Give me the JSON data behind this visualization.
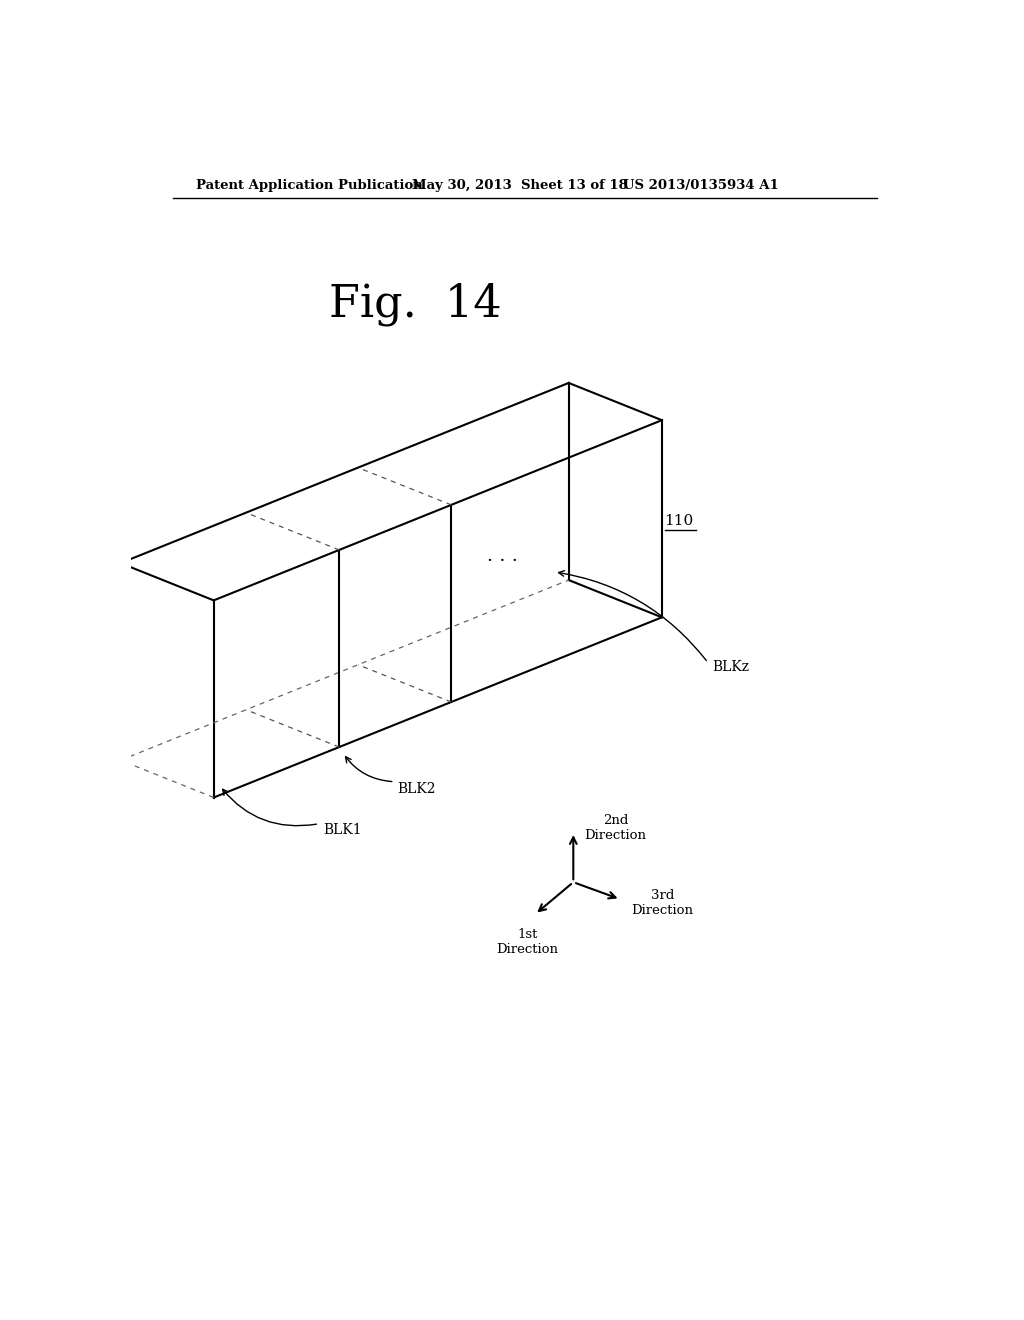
{
  "title": "Fig.  14",
  "header_left": "Patent Application Publication",
  "header_mid": "May 30, 2013  Sheet 13 of 18",
  "header_right": "US 2013/0135934 A1",
  "label_110": "110",
  "label_blk1": "BLK1",
  "label_blk2": "BLK2",
  "label_blkz": "BLKz",
  "label_1st": "1st\nDirection",
  "label_2nd": "2nd\nDirection",
  "label_3rd": "3rd\nDirection",
  "bg_color": "#ffffff",
  "line_color": "#000000",
  "fig_size": [
    10.24,
    13.2
  ],
  "dpi": 100
}
